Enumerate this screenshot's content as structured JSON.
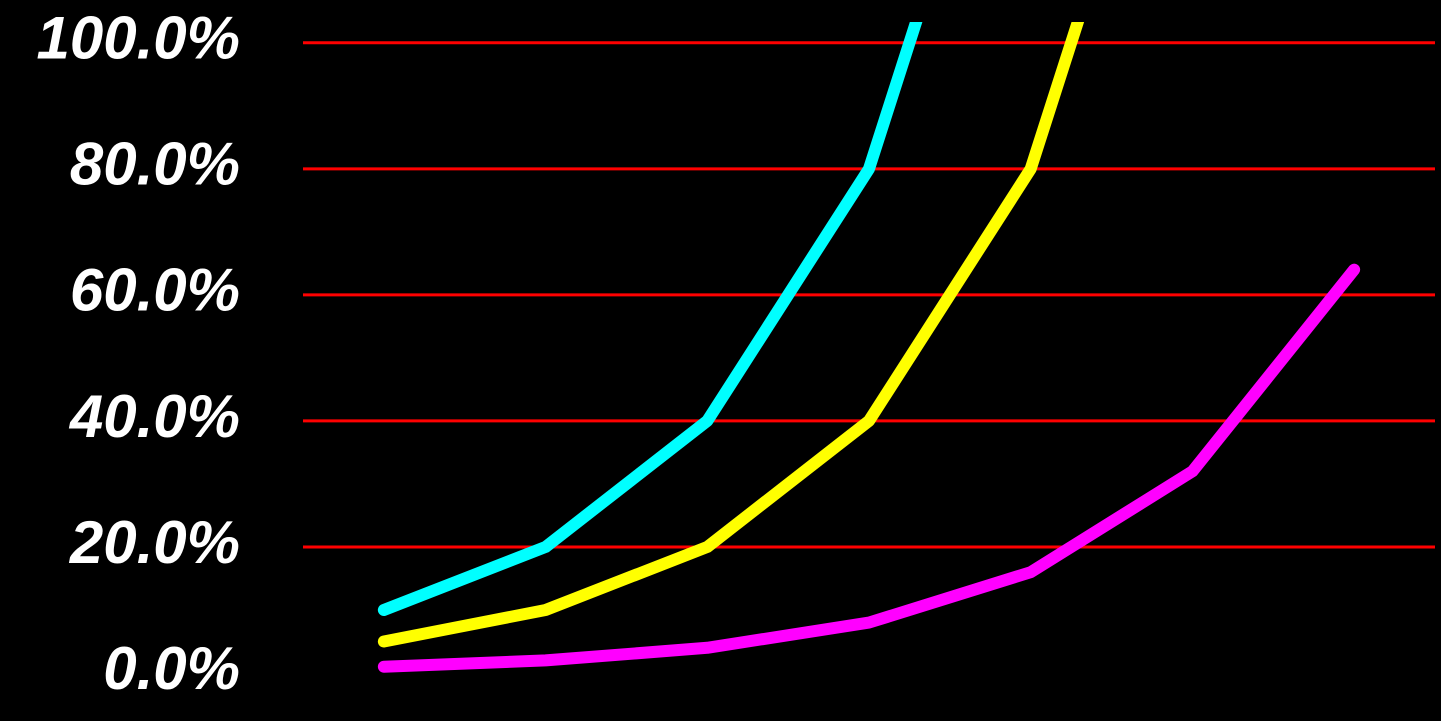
{
  "chart_data": {
    "type": "line",
    "categories": [
      null,
      null,
      null,
      null,
      null,
      null,
      null
    ],
    "series": [
      {
        "color": "#00ffff",
        "values": [
          10,
          20,
          40,
          80,
          160,
          null,
          null
        ]
      },
      {
        "color": "#ffff00",
        "values": [
          5,
          10,
          20,
          40,
          80,
          160,
          null
        ]
      },
      {
        "color": "#ff00ff",
        "values": [
          1,
          2,
          4,
          8,
          16,
          32,
          64
        ]
      }
    ],
    "ylim": [
      0,
      103.3
    ],
    "yticks": [
      {
        "value": 0,
        "label": "0.0%"
      },
      {
        "value": 20,
        "label": "20.0%"
      },
      {
        "value": 40,
        "label": "40.0%"
      },
      {
        "value": 60,
        "label": "60.0%"
      },
      {
        "value": 80,
        "label": "80.0%"
      },
      {
        "value": 100,
        "label": "100.0%"
      }
    ],
    "grid": true,
    "grid_color": "#ff0000",
    "background": "#000000"
  }
}
